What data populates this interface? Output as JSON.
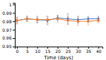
{
  "chart_data": {
    "type": "line",
    "xlabel": "Time (days)",
    "x": [
      0,
      5,
      10,
      15,
      20,
      25,
      30,
      35,
      40
    ],
    "series": [
      {
        "color": "#4472C4",
        "marker": "diamond",
        "line_style": "solid",
        "values": [
          0.981,
          0.983,
          0.982,
          0.981,
          0.984,
          0.983,
          0.982,
          0.983,
          0.983
        ],
        "errors": [
          0.004,
          0.003,
          0.004,
          0.005,
          0.003,
          0.006,
          0.004,
          0.003,
          0.003
        ]
      },
      {
        "color": "#ED7D31",
        "marker": "square",
        "line_style": "solid",
        "values": [
          0.981,
          0.983,
          0.982,
          0.982,
          0.983,
          0.981,
          0.98,
          0.98,
          0.981
        ],
        "errors": [
          0.004,
          0.003,
          0.003,
          0.004,
          0.004,
          0.005,
          0.005,
          0.004,
          0.003
        ]
      }
    ],
    "xlim": [
      -1,
      42
    ],
    "xticks": [
      0,
      5,
      10,
      15,
      20,
      25,
      30,
      35,
      40
    ],
    "ylim": [
      0.95,
      1.002
    ],
    "yticks": [
      0.95,
      0.96,
      0.97,
      0.98,
      0.99,
      1
    ],
    "grid": false
  }
}
